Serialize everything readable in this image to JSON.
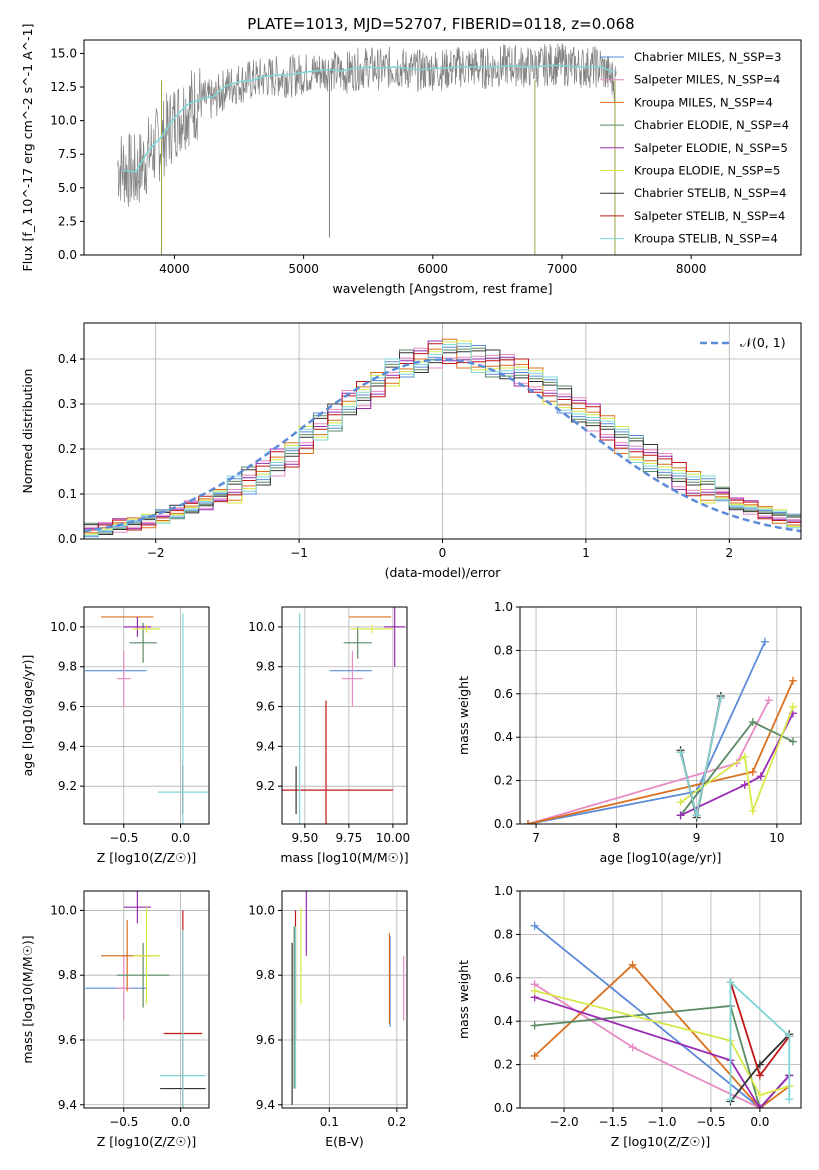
{
  "figure": {
    "title": "PLATE=1013, MJD=52707, FIBERID=0118, z=0.068"
  },
  "model_labels": [
    "Chabrier MILES, N_SSP=3",
    "Salpeter MILES, N_SSP=4",
    "Kroupa MILES, N_SSP=4",
    "Chabrier ELODIE, N_SSP=4",
    "Salpeter ELODIE, N_SSP=5",
    "Kroupa ELODIE, N_SSP=5",
    "Chabrier STELIB, N_SSP=4",
    "Salpeter STELIB, N_SSP=4",
    "Kroupa STELIB, N_SSP=4"
  ],
  "colors": {
    "data": "#808080",
    "Chabrier MILES": "#5b8bd9",
    "Salpeter MILES": "#e78bc4",
    "Kroupa MILES": "#d9701f",
    "Chabrier ELODIE": "#5a8a63",
    "Salpeter ELODIE": "#9a2cb3",
    "Kroupa ELODIE": "#d8e84a",
    "Chabrier STELIB": "#333333",
    "Salpeter STELIB": "#c01717",
    "Kroupa STELIB": "#7fd6d6",
    "normal_curve": "#5b8bd9"
  },
  "chart_data": [
    {
      "id": "spectrum",
      "type": "line",
      "xlabel": "wavelength [Angstrom, rest frame]",
      "ylabel": "Flux [f_λ 10^-17 erg cm^-2 s^-1 A^-1]",
      "xlim": [
        3300,
        8850
      ],
      "ylim": [
        0,
        16
      ],
      "xticks": [
        4000,
        5000,
        6000,
        7000,
        8000
      ],
      "yticks": [
        0.0,
        2.5,
        5.0,
        7.5,
        10.0,
        12.5,
        15.0
      ],
      "xticklabels": [
        "4000",
        "5000",
        "6000",
        "7000",
        "8000"
      ],
      "yticklabels": [
        "0.0",
        "2.5",
        "5.0",
        "7.5",
        "10.0",
        "12.5",
        "15.0"
      ],
      "legend": "right",
      "data_line": {
        "x": [
          3600,
          3700,
          3800,
          3900,
          4000,
          4100,
          4200,
          4300,
          4400,
          4500,
          4600,
          4700,
          4800,
          4900,
          5000,
          5100,
          5200,
          5300,
          5400,
          5500,
          5600,
          5700,
          5800,
          5900,
          6000,
          6100,
          6200,
          6300,
          6400,
          6500,
          6600,
          6700,
          6800,
          6900,
          7000,
          7100,
          7200,
          7300,
          7400,
          7500,
          7600,
          7700,
          7800,
          7900,
          8000,
          8100,
          8200,
          8300,
          8400,
          8500,
          8600,
          8700,
          8800
        ],
        "y": [
          6.5,
          6.0,
          7.5,
          8.5,
          10.0,
          11.0,
          11.5,
          11.5,
          12.5,
          12.8,
          13.0,
          13.2,
          13.3,
          13.3,
          13.5,
          13.6,
          13.8,
          13.5,
          13.8,
          14.0,
          13.8,
          14.0,
          13.8,
          13.7,
          13.8,
          13.8,
          14.0,
          14.0,
          13.9,
          14.0,
          14.2,
          14.0,
          14.0,
          14.2,
          14.2,
          14.0,
          14.0,
          14.0,
          13.0,
          null,
          null,
          null,
          null,
          null,
          null,
          null,
          null,
          null,
          null,
          null,
          null,
          null,
          null
        ]
      },
      "model_line": {
        "x": [
          3600,
          3700,
          3800,
          3900,
          4000,
          4100,
          4200,
          4300,
          4400,
          4500,
          4600,
          4700,
          4800,
          4900,
          5000,
          5100,
          5200,
          5300,
          5400,
          5500,
          5600,
          5700,
          5800,
          5900,
          6000,
          6100,
          6200,
          6300,
          6400,
          6500,
          6600,
          6700,
          6800,
          6900,
          7000,
          7100,
          7200,
          7300,
          7400
        ],
        "y": [
          6.3,
          6.2,
          7.8,
          8.8,
          10.2,
          11.2,
          11.6,
          11.8,
          12.6,
          12.9,
          13.0,
          13.3,
          13.4,
          13.4,
          13.6,
          13.7,
          13.8,
          13.7,
          13.9,
          14.0,
          13.9,
          14.0,
          13.9,
          13.8,
          13.9,
          13.9,
          14.0,
          14.0,
          14.0,
          14.0,
          14.1,
          14.0,
          14.0,
          14.1,
          14.1,
          14.0,
          14.0,
          14.0,
          13.6
        ]
      }
    },
    {
      "id": "residuals",
      "type": "step",
      "xlabel": "(data-model)/error",
      "ylabel": "Normed distribution",
      "xlim": [
        -2.5,
        2.5
      ],
      "ylim": [
        0,
        0.48
      ],
      "xticks": [
        -2,
        -1,
        0,
        1,
        2
      ],
      "yticks": [
        0.0,
        0.1,
        0.2,
        0.3,
        0.4
      ],
      "xticklabels": [
        "−2",
        "−1",
        "0",
        "1",
        "2"
      ],
      "yticklabels": [
        "0.0",
        "0.1",
        "0.2",
        "0.3",
        "0.4"
      ],
      "grid": true,
      "legend": "top-right",
      "normal_label": "𝒩(0, 1)",
      "bin_width": 0.1,
      "envelope": [
        0.02,
        0.025,
        0.03,
        0.035,
        0.04,
        0.05,
        0.06,
        0.07,
        0.08,
        0.095,
        0.11,
        0.13,
        0.15,
        0.17,
        0.19,
        0.22,
        0.25,
        0.27,
        0.3,
        0.32,
        0.34,
        0.37,
        0.39,
        0.4,
        0.41,
        0.42,
        0.41,
        0.4,
        0.39,
        0.38,
        0.37,
        0.35,
        0.33,
        0.31,
        0.29,
        0.27,
        0.25,
        0.22,
        0.2,
        0.18,
        0.16,
        0.14,
        0.12,
        0.11,
        0.1,
        0.08,
        0.07,
        0.06,
        0.05,
        0.04,
        0.03
      ]
    },
    {
      "id": "age-vs-Z",
      "type": "errorbar",
      "xlabel": "Z [log10(Z/Z☉)]",
      "ylabel": "age  [log10(age/yr)]",
      "xlim": [
        -0.85,
        0.25
      ],
      "ylim": [
        9.01,
        10.1
      ],
      "xticks": [
        -0.5,
        0.0
      ],
      "yticks": [
        9.2,
        9.4,
        9.6,
        9.8,
        10.0
      ],
      "xticklabels": [
        "−0.5",
        "0.0"
      ],
      "yticklabels": [
        "9.2",
        "9.4",
        "9.6",
        "9.8",
        "10.0"
      ],
      "grid": true,
      "points": [
        {
          "model": "Chabrier MILES",
          "x": -0.57,
          "y": 9.78,
          "xerr": 0.27,
          "yerr": 0.0
        },
        {
          "model": "Salpeter MILES",
          "x": -0.5,
          "y": 9.74,
          "xerr": 0.06,
          "yerr": 0.14
        },
        {
          "model": "Kroupa MILES",
          "x": -0.47,
          "y": 10.05,
          "xerr": 0.23,
          "yerr": 0.0
        },
        {
          "model": "Chabrier ELODIE",
          "x": -0.33,
          "y": 9.92,
          "xerr": 0.12,
          "yerr": 0.1
        },
        {
          "model": "Salpeter ELODIE",
          "x": -0.38,
          "y": 10.0,
          "xerr": 0.12,
          "yerr": 0.05
        },
        {
          "model": "Kroupa ELODIE",
          "x": -0.3,
          "y": 9.99,
          "xerr": 0.12,
          "yerr": 0.02
        },
        {
          "model": "Chabrier STELIB",
          "x": 0.02,
          "y": 9.18,
          "xerr": 0.0,
          "yerr": 0.12
        },
        {
          "model": "Salpeter STELIB",
          "x": 0.02,
          "y": 9.18,
          "xerr": 0.0,
          "yerr": 0.12
        },
        {
          "model": "Kroupa STELIB",
          "x": 0.02,
          "y": 9.17,
          "xerr": 0.22,
          "yerr": 0.9
        }
      ]
    },
    {
      "id": "age-vs-mass",
      "type": "errorbar",
      "xlabel": "mass [log10(M/M☉)]",
      "ylabel": "",
      "xlim": [
        9.37,
        10.08
      ],
      "ylim": [
        9.01,
        10.1
      ],
      "xticks": [
        9.5,
        9.75,
        10.0
      ],
      "yticks": [
        9.2,
        9.4,
        9.6,
        9.8,
        10.0
      ],
      "xticklabels": [
        "9.50",
        "9.75",
        "10.00"
      ],
      "yticklabels": [
        "9.2",
        "9.4",
        "9.6",
        "9.8",
        "10.0"
      ],
      "grid": true,
      "points": [
        {
          "model": "Chabrier MILES",
          "x": 9.76,
          "y": 9.78,
          "xerr": 0.12,
          "yerr": 0.0
        },
        {
          "model": "Salpeter MILES",
          "x": 9.77,
          "y": 9.74,
          "xerr": 0.06,
          "yerr": 0.14
        },
        {
          "model": "Kroupa MILES",
          "x": 9.87,
          "y": 10.05,
          "xerr": 0.12,
          "yerr": 0.0
        },
        {
          "model": "Chabrier ELODIE",
          "x": 9.8,
          "y": 9.92,
          "xerr": 0.08,
          "yerr": 0.08
        },
        {
          "model": "Salpeter ELODIE",
          "x": 10.01,
          "y": 10.0,
          "xerr": 0.06,
          "yerr": 0.2
        },
        {
          "model": "Kroupa ELODIE",
          "x": 9.88,
          "y": 9.99,
          "xerr": 0.12,
          "yerr": 0.02
        },
        {
          "model": "Chabrier STELIB",
          "x": 9.45,
          "y": 9.18,
          "xerr": 0.0,
          "yerr": 0.12
        },
        {
          "model": "Salpeter STELIB",
          "x": 9.62,
          "y": 9.18,
          "xerr": 0.38,
          "yerr": 0.45
        },
        {
          "model": "Kroupa STELIB",
          "x": 9.47,
          "y": 9.17,
          "xerr": 0.0,
          "yerr": 0.9
        }
      ]
    },
    {
      "id": "weights-vs-age",
      "type": "line",
      "xlabel": "age  [log10(age/yr)]",
      "ylabel": "mass weight",
      "xlim": [
        6.8,
        10.3
      ],
      "ylim": [
        0,
        1
      ],
      "xticks": [
        7,
        8,
        9,
        10
      ],
      "yticks": [
        0.0,
        0.2,
        0.4,
        0.6,
        0.8,
        1.0
      ],
      "xticklabels": [
        "7",
        "8",
        "9",
        "10"
      ],
      "yticklabels": [
        "0.0",
        "0.2",
        "0.4",
        "0.6",
        "0.8",
        "1.0"
      ],
      "grid": true,
      "series": [
        {
          "model": "Chabrier MILES",
          "x": [
            6.9,
            9.0,
            9.85
          ],
          "y": [
            0.0,
            0.15,
            0.84
          ]
        },
        {
          "model": "Salpeter MILES",
          "x": [
            6.9,
            9.5,
            9.9
          ],
          "y": [
            0.0,
            0.28,
            0.57
          ]
        },
        {
          "model": "Kroupa MILES",
          "x": [
            6.9,
            9.7,
            10.2
          ],
          "y": [
            0.0,
            0.24,
            0.66
          ]
        },
        {
          "model": "Chabrier ELODIE",
          "x": [
            8.8,
            9.7,
            10.2
          ],
          "y": [
            0.04,
            0.47,
            0.38
          ]
        },
        {
          "model": "Salpeter ELODIE",
          "x": [
            8.8,
            9.6,
            9.8,
            10.2
          ],
          "y": [
            0.04,
            0.18,
            0.22,
            0.51
          ]
        },
        {
          "model": "Kroupa ELODIE",
          "x": [
            8.8,
            9.6,
            9.7,
            10.2
          ],
          "y": [
            0.1,
            0.31,
            0.06,
            0.54
          ]
        },
        {
          "model": "Chabrier STELIB",
          "x": [
            8.8,
            9.0,
            9.3
          ],
          "y": [
            0.34,
            0.03,
            0.59
          ]
        },
        {
          "model": "Salpeter STELIB",
          "x": [
            8.8,
            9.0,
            9.3
          ],
          "y": [
            0.33,
            0.04,
            0.58
          ]
        },
        {
          "model": "Kroupa STELIB",
          "x": [
            8.8,
            9.0,
            9.3
          ],
          "y": [
            0.33,
            0.04,
            0.58
          ]
        }
      ]
    },
    {
      "id": "mass-vs-Z",
      "type": "errorbar",
      "xlabel": "Z [log10(Z/Z☉)]",
      "ylabel": "mass [log10(M/M☉)]",
      "xlim": [
        -0.85,
        0.25
      ],
      "ylim": [
        9.39,
        10.06
      ],
      "xticks": [
        -0.5,
        0.0
      ],
      "yticks": [
        9.4,
        9.6,
        9.8,
        10.0
      ],
      "xticklabels": [
        "−0.5",
        "0.0"
      ],
      "yticklabels": [
        "9.4",
        "9.6",
        "9.8",
        "10.0"
      ],
      "grid": true,
      "points": [
        {
          "model": "Chabrier MILES",
          "x": -0.57,
          "y": 9.76,
          "xerr": 0.27,
          "yerr": 0.0
        },
        {
          "model": "Salpeter MILES",
          "x": -0.5,
          "y": 9.76,
          "xerr": 0.06,
          "yerr": 0.1
        },
        {
          "model": "Kroupa MILES",
          "x": -0.47,
          "y": 9.86,
          "xerr": 0.23,
          "yerr": 0.11
        },
        {
          "model": "Chabrier ELODIE",
          "x": -0.33,
          "y": 9.8,
          "xerr": 0.23,
          "yerr": 0.1
        },
        {
          "model": "Salpeter ELODIE",
          "x": -0.38,
          "y": 10.01,
          "xerr": 0.12,
          "yerr": 0.05
        },
        {
          "model": "Kroupa ELODIE",
          "x": -0.3,
          "y": 9.86,
          "xerr": 0.12,
          "yerr": 0.15
        },
        {
          "model": "Chabrier STELIB",
          "x": 0.02,
          "y": 9.45,
          "xerr": 0.2,
          "yerr": 0.0
        },
        {
          "model": "Salpeter STELIB",
          "x": 0.02,
          "y": 9.62,
          "xerr": 0.17,
          "yerr": 0.38
        },
        {
          "model": "Kroupa STELIB",
          "x": 0.02,
          "y": 9.49,
          "xerr": 0.2,
          "yerr": 0.45
        }
      ]
    },
    {
      "id": "mass-vs-ebv",
      "type": "errorbar",
      "xlabel": "E(B-V)",
      "ylabel": "",
      "xlim": [
        0.03,
        0.215
      ],
      "ylim": [
        9.39,
        10.06
      ],
      "xticks": [
        0.1,
        0.2
      ],
      "yticks": [
        9.4,
        9.6,
        9.8,
        10.0
      ],
      "xticklabels": [
        "0.1",
        "0.2"
      ],
      "yticklabels": [
        "9.4",
        "9.6",
        "9.8",
        "10.0"
      ],
      "grid": true,
      "points": [
        {
          "model": "Chabrier MILES",
          "x": 0.19,
          "y": 9.78,
          "xerr": 0.0,
          "yerr": 0.14
        },
        {
          "model": "Salpeter MILES",
          "x": 0.21,
          "y": 9.76,
          "xerr": 0.0,
          "yerr": 0.1
        },
        {
          "model": "Kroupa MILES",
          "x": 0.189,
          "y": 9.79,
          "xerr": 0.0,
          "yerr": 0.14
        },
        {
          "model": "Chabrier ELODIE",
          "x": 0.048,
          "y": 9.7,
          "xerr": 0.0,
          "yerr": 0.25
        },
        {
          "model": "Salpeter ELODIE",
          "x": 0.066,
          "y": 9.96,
          "xerr": 0.0,
          "yerr": 0.1
        },
        {
          "model": "Kroupa ELODIE",
          "x": 0.058,
          "y": 9.86,
          "xerr": 0.0,
          "yerr": 0.15
        },
        {
          "model": "Chabrier STELIB",
          "x": 0.045,
          "y": 9.65,
          "xerr": 0.0,
          "yerr": 0.25
        },
        {
          "model": "Salpeter STELIB",
          "x": 0.05,
          "y": 9.8,
          "xerr": 0.0,
          "yerr": 0.2
        },
        {
          "model": "Kroupa STELIB",
          "x": 0.05,
          "y": 9.7,
          "xerr": 0.0,
          "yerr": 0.25
        }
      ]
    },
    {
      "id": "weights-vs-Z",
      "type": "line",
      "xlabel": "Z [log10(Z/Z☉)]",
      "ylabel": "mass weight",
      "xlim": [
        -2.45,
        0.42
      ],
      "ylim": [
        0,
        1
      ],
      "xticks": [
        -2.0,
        -1.5,
        -1.0,
        -0.5,
        0.0
      ],
      "yticks": [
        0.0,
        0.2,
        0.4,
        0.6,
        0.8,
        1.0
      ],
      "xticklabels": [
        "−2.0",
        "−1.5",
        "−1.0",
        "−0.5",
        "0.0"
      ],
      "yticklabels": [
        "0.0",
        "0.2",
        "0.4",
        "0.6",
        "0.8",
        "1.0"
      ],
      "grid": true,
      "series": [
        {
          "model": "Chabrier MILES",
          "x": [
            -2.3,
            0.0,
            0.3
          ],
          "y": [
            0.84,
            0.0,
            0.15
          ]
        },
        {
          "model": "Salpeter MILES",
          "x": [
            -2.3,
            -1.3,
            0.0,
            0.3
          ],
          "y": [
            0.57,
            0.28,
            0.0,
            0.15
          ]
        },
        {
          "model": "Kroupa MILES",
          "x": [
            -2.3,
            -1.3,
            0.0,
            0.3
          ],
          "y": [
            0.24,
            0.66,
            0.0,
            0.1
          ]
        },
        {
          "model": "Chabrier ELODIE",
          "x": [
            -2.3,
            -0.3,
            0.0,
            0.3
          ],
          "y": [
            0.38,
            0.47,
            0.0,
            0.15
          ]
        },
        {
          "model": "Salpeter ELODIE",
          "x": [
            -2.3,
            -0.3,
            0.0,
            0.3
          ],
          "y": [
            0.51,
            0.22,
            0.0,
            0.15
          ]
        },
        {
          "model": "Kroupa ELODIE",
          "x": [
            -2.3,
            -0.3,
            0.0,
            0.3
          ],
          "y": [
            0.54,
            0.31,
            0.06,
            0.1
          ]
        },
        {
          "model": "Chabrier STELIB",
          "x": [
            -0.3,
            0.0,
            0.3
          ],
          "y": [
            0.03,
            0.2,
            0.34
          ]
        },
        {
          "model": "Salpeter STELIB",
          "x": [
            -0.3,
            0.0,
            0.3
          ],
          "y": [
            0.58,
            0.15,
            0.33
          ]
        },
        {
          "model": "Kroupa STELIB",
          "x": [
            -0.3,
            -0.3,
            0.3,
            0.3
          ],
          "y": [
            0.04,
            0.58,
            0.33,
            0.04
          ]
        }
      ]
    }
  ]
}
